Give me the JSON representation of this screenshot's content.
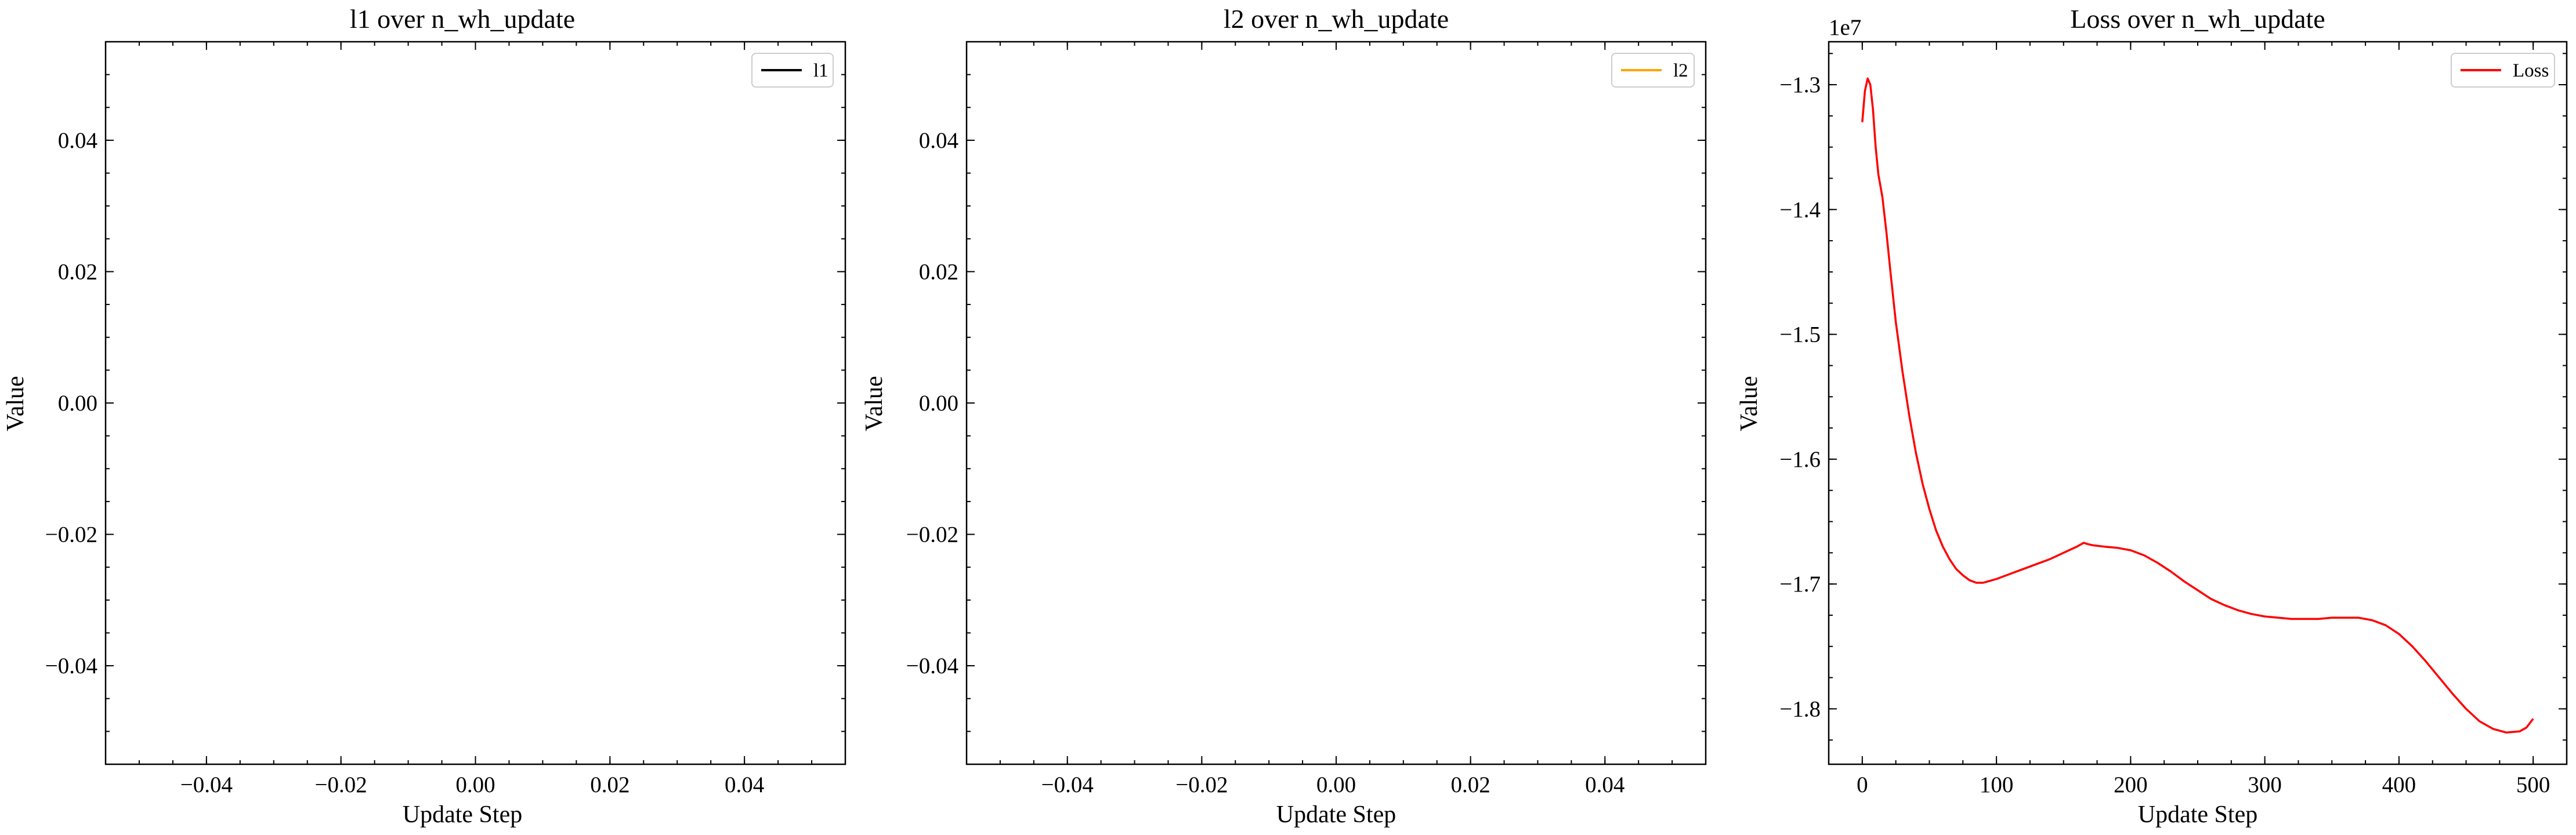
{
  "figure": {
    "background": "#ffffff"
  },
  "chart_data": [
    {
      "type": "line",
      "title": "l1 over n_wh_update",
      "xlabel": "Update Step",
      "ylabel": "Value",
      "xlim": [
        -0.055,
        0.055
      ],
      "ylim": [
        -0.055,
        0.055
      ],
      "xticks": [
        -0.04,
        -0.02,
        0.0,
        0.02,
        0.04
      ],
      "yticks": [
        -0.04,
        -0.02,
        0.0,
        0.02,
        0.04
      ],
      "xticklabels": [
        "−0.04",
        "−0.02",
        "0.00",
        "0.02",
        "0.04"
      ],
      "yticklabels": [
        "−0.04",
        "−0.02",
        "0.00",
        "0.02",
        "0.04"
      ],
      "legend_position": "top-right",
      "series": [
        {
          "name": "l1",
          "color": "#000000",
          "x": [],
          "y": []
        }
      ]
    },
    {
      "type": "line",
      "title": "l2 over n_wh_update",
      "xlabel": "Update Step",
      "ylabel": "Value",
      "xlim": [
        -0.055,
        0.055
      ],
      "ylim": [
        -0.055,
        0.055
      ],
      "xticks": [
        -0.04,
        -0.02,
        0.0,
        0.02,
        0.04
      ],
      "yticks": [
        -0.04,
        -0.02,
        0.0,
        0.02,
        0.04
      ],
      "xticklabels": [
        "−0.04",
        "−0.02",
        "0.00",
        "0.02",
        "0.04"
      ],
      "yticklabels": [
        "−0.04",
        "−0.02",
        "0.00",
        "0.02",
        "0.04"
      ],
      "legend_position": "top-right",
      "series": [
        {
          "name": "l2",
          "color": "#ffa500",
          "x": [],
          "y": []
        }
      ]
    },
    {
      "type": "line",
      "title": "Loss over n_wh_update",
      "xlabel": "Update Step",
      "ylabel": "Value",
      "y_offset_label": "1e7",
      "xlim": [
        -25,
        525
      ],
      "ylim": [
        -1.8444,
        -1.2656
      ],
      "xticks": [
        0,
        100,
        200,
        300,
        400,
        500
      ],
      "yticks": [
        -1.8,
        -1.7,
        -1.6,
        -1.5,
        -1.4,
        -1.3
      ],
      "xticklabels": [
        "0",
        "100",
        "200",
        "300",
        "400",
        "500"
      ],
      "yticklabels": [
        "−1.8",
        "−1.7",
        "−1.6",
        "−1.5",
        "−1.4",
        "−1.3"
      ],
      "legend_position": "top-right",
      "series": [
        {
          "name": "Loss",
          "color": "#ff0000",
          "x": [
            0,
            2,
            4,
            6,
            8,
            10,
            12,
            15,
            18,
            21,
            25,
            30,
            35,
            40,
            45,
            50,
            55,
            60,
            65,
            70,
            75,
            80,
            85,
            90,
            100,
            110,
            120,
            130,
            140,
            150,
            160,
            165,
            168,
            172,
            180,
            190,
            200,
            210,
            220,
            230,
            240,
            250,
            260,
            270,
            280,
            290,
            300,
            310,
            320,
            330,
            340,
            350,
            360,
            370,
            380,
            390,
            400,
            410,
            420,
            430,
            440,
            450,
            460,
            470,
            480,
            490,
            495,
            500
          ],
          "y": [
            -1.33,
            -1.305,
            -1.295,
            -1.3,
            -1.32,
            -1.35,
            -1.372,
            -1.39,
            -1.418,
            -1.45,
            -1.49,
            -1.53,
            -1.565,
            -1.595,
            -1.62,
            -1.64,
            -1.657,
            -1.67,
            -1.68,
            -1.688,
            -1.693,
            -1.697,
            -1.699,
            -1.699,
            -1.696,
            -1.692,
            -1.688,
            -1.684,
            -1.68,
            -1.675,
            -1.67,
            -1.667,
            -1.668,
            -1.669,
            -1.67,
            -1.671,
            -1.673,
            -1.677,
            -1.683,
            -1.69,
            -1.698,
            -1.705,
            -1.712,
            -1.717,
            -1.721,
            -1.724,
            -1.726,
            -1.727,
            -1.728,
            -1.728,
            -1.728,
            -1.727,
            -1.727,
            -1.727,
            -1.729,
            -1.733,
            -1.74,
            -1.75,
            -1.762,
            -1.775,
            -1.788,
            -1.8,
            -1.81,
            -1.816,
            -1.819,
            -1.818,
            -1.815,
            -1.808
          ]
        }
      ]
    }
  ]
}
